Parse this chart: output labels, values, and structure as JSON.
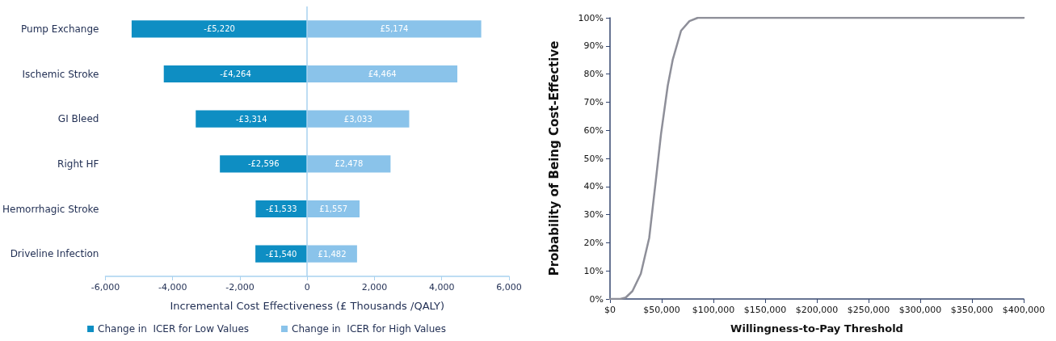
{
  "chart_data": [
    {
      "type": "bar",
      "orientation": "horizontal",
      "xlabel": "Incremental Cost Effectiveness (£ Thousands /QALY)",
      "categories": [
        "Pump Exchange",
        "Ischemic Stroke",
        "GI Bleed",
        "Right HF",
        "Hemorrhagic Stroke",
        "Driveline Infection"
      ],
      "series": [
        {
          "name": "Change in  ICER for Low Values",
          "color": "#0e8ec3",
          "values": [
            -5220,
            -4264,
            -3314,
            -2596,
            -1533,
            -1540
          ],
          "value_labels": [
            "-£5,220",
            "-£4,264",
            "-£3,314",
            "-£2,596",
            "-£1,533",
            "-£1,540"
          ]
        },
        {
          "name": "Change in  ICER for High Values",
          "color": "#8ac3ea",
          "values": [
            5174,
            4464,
            3033,
            2478,
            1557,
            1482
          ],
          "value_labels": [
            "£5,174",
            "£4,464",
            "£3,033",
            "£2,478",
            "£1,557",
            "£1,482"
          ]
        }
      ],
      "xlim": [
        -6000,
        6000
      ],
      "xticks": [
        {
          "value": -6000,
          "label": "-6,000"
        },
        {
          "value": -4000,
          "label": "-4,000"
        },
        {
          "value": -2000,
          "label": "-2,000"
        },
        0,
        {
          "value": 2000,
          "label": "2,000"
        },
        {
          "value": 4000,
          "label": "4,000"
        },
        {
          "value": 6000,
          "label": "6,000"
        }
      ],
      "stacked": true,
      "ref_lines": [
        {
          "axis": "x",
          "value": 0,
          "color": "#a9d2ef"
        }
      ],
      "grid": false,
      "legend": "bottom"
    },
    {
      "type": "line",
      "xlabel": "Willingness-to-Pay Threshold",
      "ylabel": "Probability of Being Cost-Effective",
      "x": [
        0,
        10000,
        15200,
        21700,
        29800,
        37900,
        44400,
        49300,
        55800,
        60600,
        68700,
        76800,
        84900,
        100000,
        400000
      ],
      "series": [
        {
          "color": "#8e8f99",
          "values": [
            0,
            0,
            0.5,
            2.8,
            9,
            21.7,
            42.5,
            58.6,
            75.8,
            85,
            95.4,
            98.8,
            100,
            100,
            100
          ]
        }
      ],
      "xlim": [
        0,
        400000
      ],
      "xticks": [
        {
          "value": 0,
          "label": "$0"
        },
        {
          "value": 50000,
          "label": "$50,000"
        },
        {
          "value": 100000,
          "label": "$100,000"
        },
        {
          "value": 150000,
          "label": "$150,000"
        },
        {
          "value": 200000,
          "label": "$200,000"
        },
        {
          "value": 250000,
          "label": "$250,000"
        },
        {
          "value": 300000,
          "label": "$300,000"
        },
        {
          "value": 350000,
          "label": "$350,000"
        },
        {
          "value": 400000,
          "label": "$400,000"
        }
      ],
      "ylim": [
        0,
        100
      ],
      "yticks": [
        {
          "value": 0,
          "label": "0%"
        },
        {
          "value": 10,
          "label": "10%"
        },
        {
          "value": 20,
          "label": "20%"
        },
        {
          "value": 30,
          "label": "30%"
        },
        {
          "value": 40,
          "label": "40%"
        },
        {
          "value": 50,
          "label": "50%"
        },
        {
          "value": 60,
          "label": "60%"
        },
        {
          "value": 70,
          "label": "70%"
        },
        {
          "value": 80,
          "label": "80%"
        },
        {
          "value": 90,
          "label": "90%"
        },
        {
          "value": 100,
          "label": "100%"
        }
      ],
      "grid": false,
      "marker": "none",
      "line_style": "solid",
      "legend": false
    }
  ]
}
